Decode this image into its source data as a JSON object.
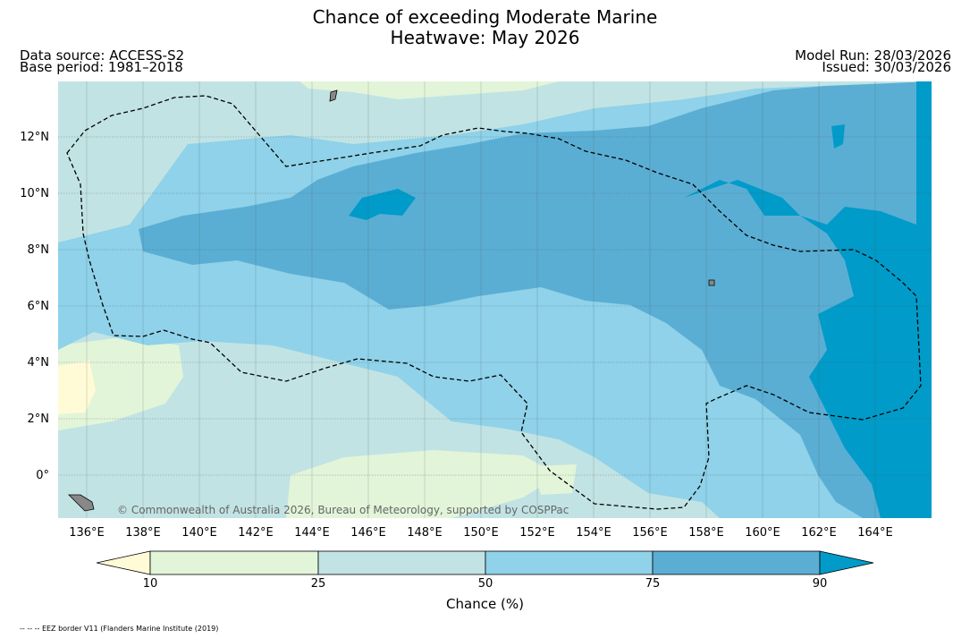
{
  "title_line1": "Chance of exceeding Moderate Marine",
  "title_line2": "Heatwave: May 2026",
  "data_source": "Data source: ACCESS-S2",
  "base_period": "Base period: 1981–2018",
  "model_run": "Model Run: 28/03/2026",
  "issued": "Issued: 30/03/2026",
  "copyright": "© Commonwealth of Australia 2026, Bureau of Meteorology, supported by COSPPac",
  "lat_labels": [
    "12°N",
    "10°N",
    "8°N",
    "6°N",
    "4°N",
    "2°N",
    "0°"
  ],
  "lon_labels": [
    "136°E",
    "138°E",
    "140°E",
    "142°E",
    "144°E",
    "146°E",
    "148°E",
    "150°E",
    "152°E",
    "154°E",
    "156°E",
    "158°E",
    "160°E",
    "162°E",
    "164°E"
  ],
  "colorbar": {
    "ticks": [
      "10",
      "25",
      "50",
      "75",
      "90"
    ],
    "label": "Chance (%)",
    "colors": [
      "#fffbd6",
      "#e2f5d9",
      "#c2e3e4",
      "#8fd2e9",
      "#5aaed4",
      "#009bc9"
    ]
  },
  "footer": "-- -- -- EEZ border V11 (Flanders Marine Institute (2019)"
}
